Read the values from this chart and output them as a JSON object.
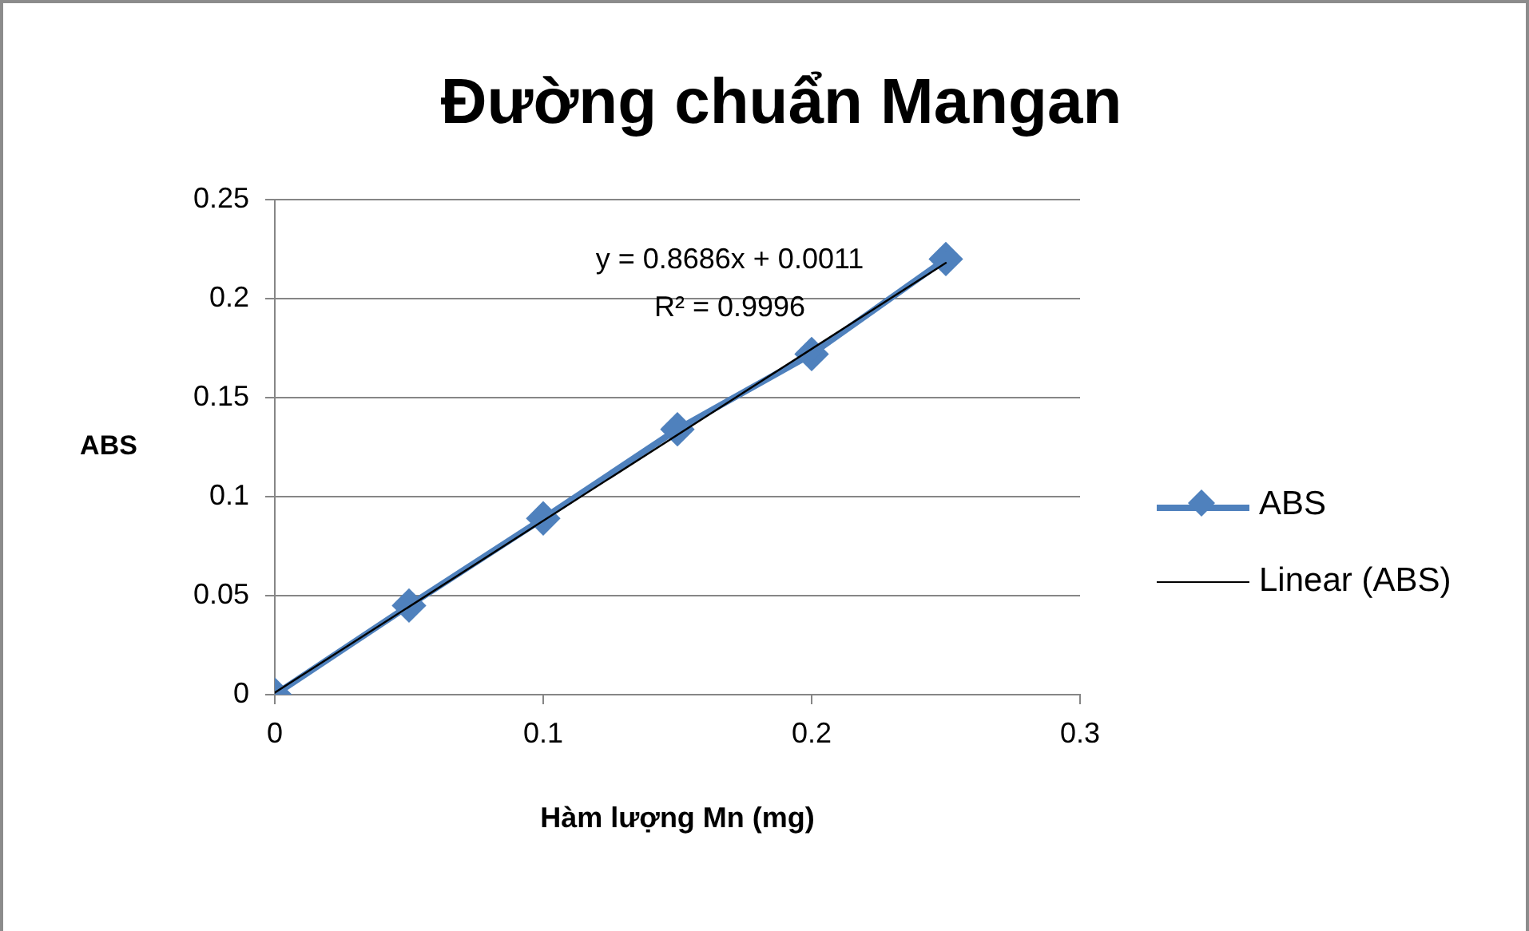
{
  "chart_data": {
    "type": "line",
    "title": "Đường chuẩn Mangan",
    "xlabel": "Hàm lượng Mn (mg)",
    "ylabel": "ABS",
    "x": [
      0,
      0.05,
      0.1,
      0.15,
      0.2,
      0.25
    ],
    "series": [
      {
        "name": "ABS",
        "color": "#4f81bd",
        "values": [
          0,
          0.045,
          0.089,
          0.134,
          0.172,
          0.22
        ],
        "marker": "diamond"
      },
      {
        "name": "Linear (ABS)",
        "type": "line",
        "color": "#000000",
        "x": [
          0,
          0.25
        ],
        "values": [
          0.001,
          0.218
        ],
        "marker": "none"
      }
    ],
    "annotations": [
      "y = 0.8686x + 0.0011",
      "R² = 0.9996"
    ],
    "xlim": [
      0,
      0.3
    ],
    "xticks": [
      0,
      0.1,
      0.2,
      0.3
    ],
    "ylim": [
      0,
      0.25
    ],
    "yticks": [
      0,
      0.05,
      0.1,
      0.15,
      0.2,
      0.25
    ],
    "grid": "y",
    "legend": "right"
  }
}
